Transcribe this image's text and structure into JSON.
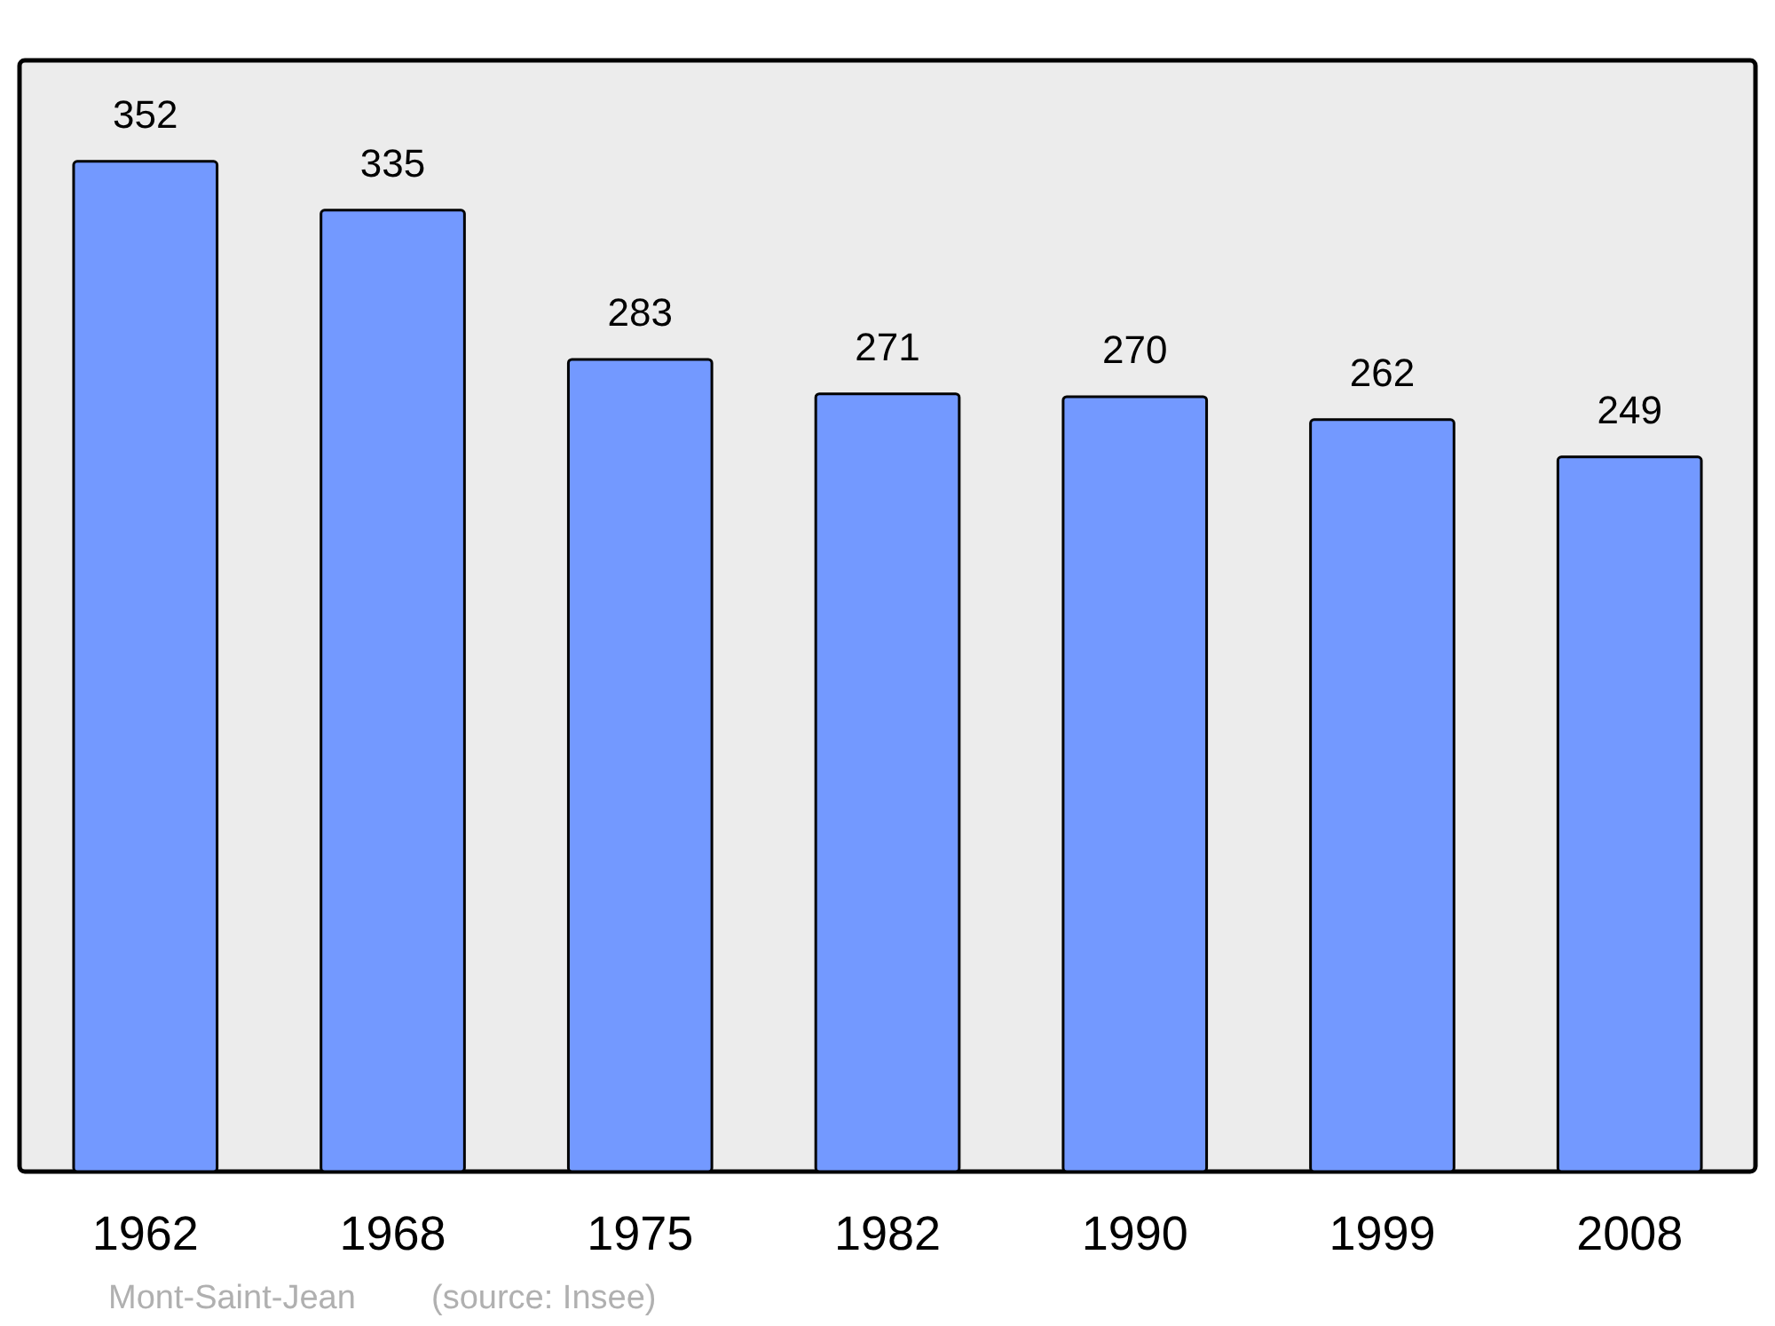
{
  "chart_data": {
    "type": "bar",
    "categories": [
      "1962",
      "1968",
      "1975",
      "1982",
      "1990",
      "1999",
      "2008"
    ],
    "values": [
      352,
      335,
      283,
      271,
      270,
      262,
      249
    ],
    "color": "#7399ff",
    "data_labels": true,
    "annotations": [
      "Mont-Saint-Jean",
      "(source: Insee)"
    ]
  }
}
